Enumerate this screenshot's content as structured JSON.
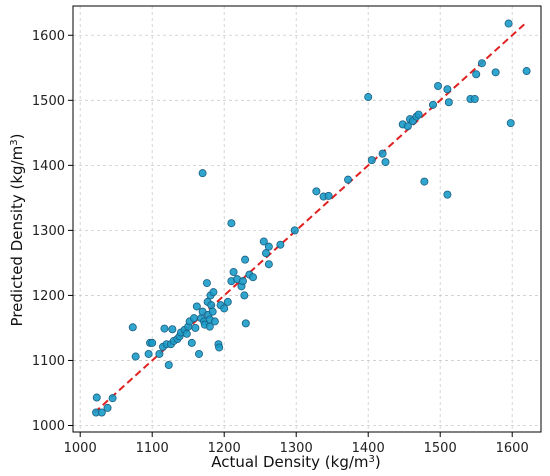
{
  "chart_data": {
    "type": "scatter",
    "title": "",
    "xlabel": "Actual Density (kg/m",
    "xlabel_sup": "3",
    "xlabel_end": ")",
    "ylabel": "Predicted Density (kg/m",
    "ylabel_sup": "3",
    "ylabel_end": ")",
    "xlim": [
      990,
      1640
    ],
    "ylim": [
      990,
      1645
    ],
    "xticks": [
      1000,
      1100,
      1200,
      1300,
      1400,
      1500,
      1600
    ],
    "yticks": [
      1000,
      1100,
      1200,
      1300,
      1400,
      1500,
      1600
    ],
    "grid": true,
    "point_color": "#1a9bc8",
    "point_edge": "#1b5f82",
    "line_color": "#e02020",
    "reference_line": {
      "x": [
        1020,
        1620
      ],
      "y": [
        1020,
        1620
      ],
      "style": "dashed"
    },
    "points": [
      [
        1022,
        1020
      ],
      [
        1023,
        1043
      ],
      [
        1030,
        1020
      ],
      [
        1038,
        1027
      ],
      [
        1045,
        1042
      ],
      [
        1073,
        1151
      ],
      [
        1077,
        1106
      ],
      [
        1095,
        1110
      ],
      [
        1097,
        1127
      ],
      [
        1100,
        1127
      ],
      [
        1110,
        1110
      ],
      [
        1115,
        1121
      ],
      [
        1117,
        1149
      ],
      [
        1120,
        1125
      ],
      [
        1123,
        1093
      ],
      [
        1126,
        1125
      ],
      [
        1128,
        1148
      ],
      [
        1130,
        1130
      ],
      [
        1135,
        1133
      ],
      [
        1138,
        1137
      ],
      [
        1140,
        1143
      ],
      [
        1145,
        1147
      ],
      [
        1148,
        1141
      ],
      [
        1150,
        1152
      ],
      [
        1152,
        1160
      ],
      [
        1155,
        1127
      ],
      [
        1158,
        1165
      ],
      [
        1160,
        1150
      ],
      [
        1162,
        1183
      ],
      [
        1165,
        1110
      ],
      [
        1168,
        1165
      ],
      [
        1170,
        1175
      ],
      [
        1170,
        1388
      ],
      [
        1172,
        1160
      ],
      [
        1173,
        1155
      ],
      [
        1176,
        1219
      ],
      [
        1177,
        1190
      ],
      [
        1178,
        1170
      ],
      [
        1180,
        1163
      ],
      [
        1180,
        1152
      ],
      [
        1181,
        1200
      ],
      [
        1182,
        1185
      ],
      [
        1184,
        1175
      ],
      [
        1185,
        1205
      ],
      [
        1187,
        1160
      ],
      [
        1192,
        1125
      ],
      [
        1193,
        1120
      ],
      [
        1195,
        1185
      ],
      [
        1200,
        1180
      ],
      [
        1205,
        1190
      ],
      [
        1210,
        1311
      ],
      [
        1210,
        1222
      ],
      [
        1213,
        1236
      ],
      [
        1218,
        1225
      ],
      [
        1224,
        1214
      ],
      [
        1226,
        1222
      ],
      [
        1228,
        1200
      ],
      [
        1229,
        1255
      ],
      [
        1230,
        1157
      ],
      [
        1235,
        1232
      ],
      [
        1240,
        1228
      ],
      [
        1255,
        1283
      ],
      [
        1258,
        1265
      ],
      [
        1262,
        1275
      ],
      [
        1262,
        1248
      ],
      [
        1278,
        1278
      ],
      [
        1298,
        1300
      ],
      [
        1328,
        1360
      ],
      [
        1338,
        1352
      ],
      [
        1345,
        1353
      ],
      [
        1372,
        1378
      ],
      [
        1400,
        1505
      ],
      [
        1405,
        1408
      ],
      [
        1420,
        1418
      ],
      [
        1424,
        1405
      ],
      [
        1448,
        1463
      ],
      [
        1455,
        1460
      ],
      [
        1458,
        1471
      ],
      [
        1462,
        1468
      ],
      [
        1467,
        1475
      ],
      [
        1470,
        1478
      ],
      [
        1478,
        1375
      ],
      [
        1490,
        1493
      ],
      [
        1497,
        1522
      ],
      [
        1510,
        1355
      ],
      [
        1510,
        1517
      ],
      [
        1512,
        1497
      ],
      [
        1542,
        1502
      ],
      [
        1548,
        1502
      ],
      [
        1550,
        1540
      ],
      [
        1558,
        1557
      ],
      [
        1577,
        1543
      ],
      [
        1595,
        1618
      ],
      [
        1598,
        1465
      ],
      [
        1620,
        1545
      ]
    ]
  }
}
